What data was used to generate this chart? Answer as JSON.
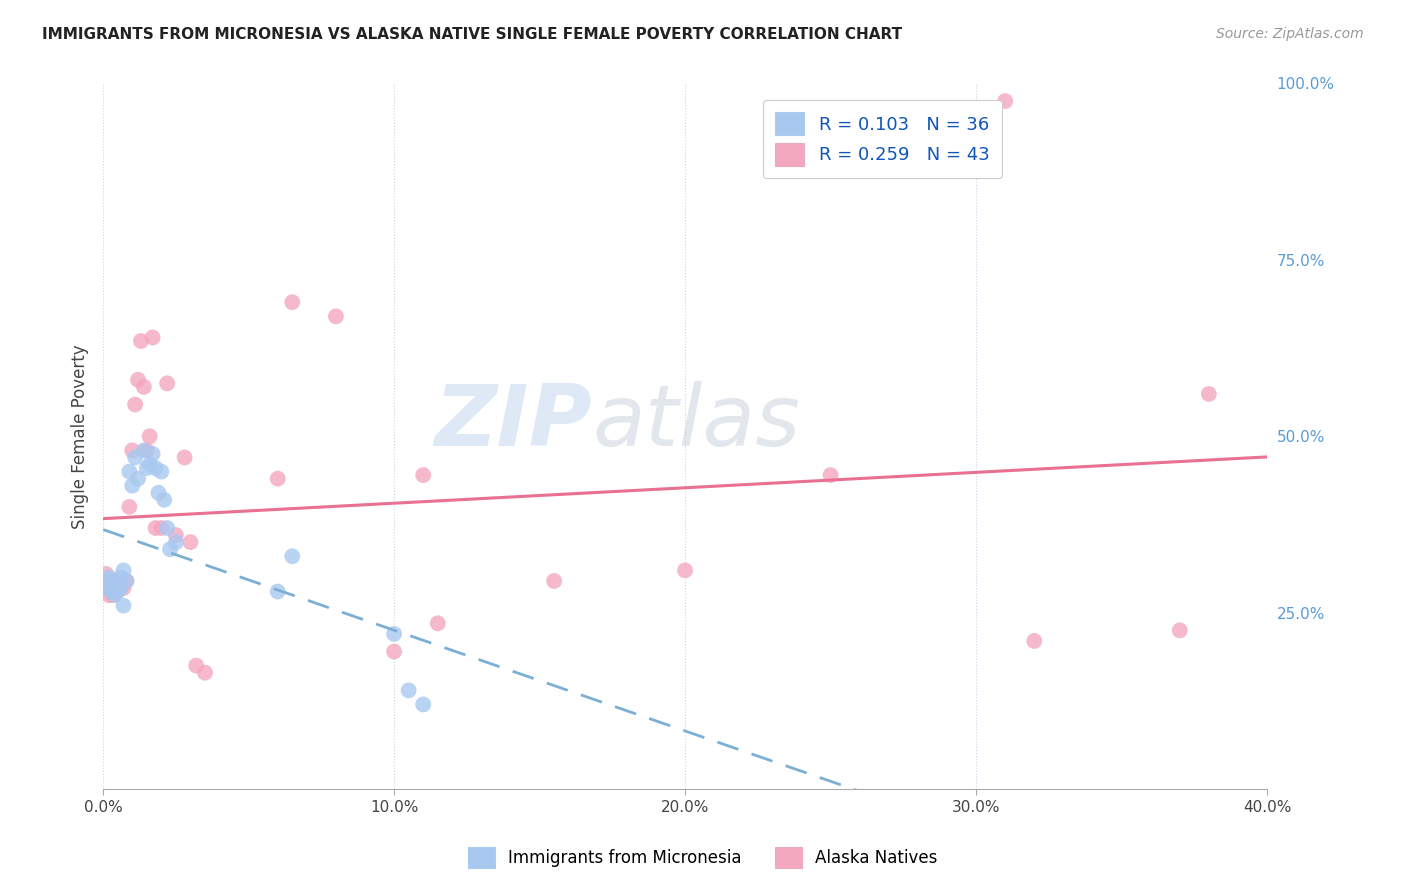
{
  "title": "IMMIGRANTS FROM MICRONESIA VS ALASKA NATIVE SINGLE FEMALE POVERTY CORRELATION CHART",
  "source": "Source: ZipAtlas.com",
  "ylabel": "Single Female Poverty",
  "xlim": [
    0.0,
    0.4
  ],
  "ylim": [
    0.0,
    1.0
  ],
  "xtick_labels": [
    "0.0%",
    "10.0%",
    "20.0%",
    "30.0%",
    "40.0%"
  ],
  "xtick_positions": [
    0.0,
    0.1,
    0.2,
    0.3,
    0.4
  ],
  "ytick_labels_right": [
    "100.0%",
    "75.0%",
    "50.0%",
    "25.0%"
  ],
  "ytick_positions_right": [
    1.0,
    0.75,
    0.5,
    0.25
  ],
  "R1": 0.103,
  "N1": 36,
  "R2": 0.259,
  "N2": 43,
  "blue_color": "#A8C8F0",
  "pink_color": "#F4A8C0",
  "blue_line_color": "#7BAFD4",
  "pink_line_color": "#E87090",
  "watermark": "ZIPatlas",
  "watermark_blue": "#C5D8F0",
  "watermark_gray": "#C0C8D8",
  "bottom_legend_label1": "Immigrants from Micronesia",
  "bottom_legend_label2": "Alaska Natives",
  "legend_blue_R": "0.103",
  "legend_blue_N": "36",
  "legend_pink_R": "0.259",
  "legend_pink_N": "43",
  "blue_dots_x": [
    0.001,
    0.001,
    0.002,
    0.002,
    0.003,
    0.003,
    0.003,
    0.004,
    0.004,
    0.005,
    0.005,
    0.006,
    0.006,
    0.007,
    0.007,
    0.008,
    0.009,
    0.01,
    0.011,
    0.012,
    0.014,
    0.015,
    0.016,
    0.017,
    0.018,
    0.019,
    0.02,
    0.021,
    0.022,
    0.023,
    0.025,
    0.06,
    0.065,
    0.1,
    0.105,
    0.11
  ],
  "blue_dots_y": [
    0.295,
    0.285,
    0.3,
    0.285,
    0.295,
    0.285,
    0.28,
    0.29,
    0.275,
    0.295,
    0.28,
    0.3,
    0.285,
    0.31,
    0.26,
    0.295,
    0.45,
    0.43,
    0.47,
    0.44,
    0.48,
    0.455,
    0.46,
    0.475,
    0.455,
    0.42,
    0.45,
    0.41,
    0.37,
    0.34,
    0.35,
    0.28,
    0.33,
    0.22,
    0.14,
    0.12
  ],
  "pink_dots_x": [
    0.001,
    0.001,
    0.002,
    0.002,
    0.003,
    0.003,
    0.004,
    0.004,
    0.005,
    0.005,
    0.006,
    0.007,
    0.008,
    0.009,
    0.01,
    0.011,
    0.012,
    0.013,
    0.014,
    0.015,
    0.016,
    0.017,
    0.018,
    0.02,
    0.022,
    0.025,
    0.028,
    0.03,
    0.032,
    0.035,
    0.06,
    0.065,
    0.08,
    0.1,
    0.11,
    0.115,
    0.155,
    0.2,
    0.25,
    0.31,
    0.32,
    0.37,
    0.38
  ],
  "pink_dots_y": [
    0.305,
    0.285,
    0.295,
    0.275,
    0.295,
    0.275,
    0.29,
    0.28,
    0.295,
    0.285,
    0.295,
    0.285,
    0.295,
    0.4,
    0.48,
    0.545,
    0.58,
    0.635,
    0.57,
    0.48,
    0.5,
    0.64,
    0.37,
    0.37,
    0.575,
    0.36,
    0.47,
    0.35,
    0.175,
    0.165,
    0.44,
    0.69,
    0.67,
    0.195,
    0.445,
    0.235,
    0.295,
    0.31,
    0.445,
    0.975,
    0.21,
    0.225,
    0.56
  ]
}
